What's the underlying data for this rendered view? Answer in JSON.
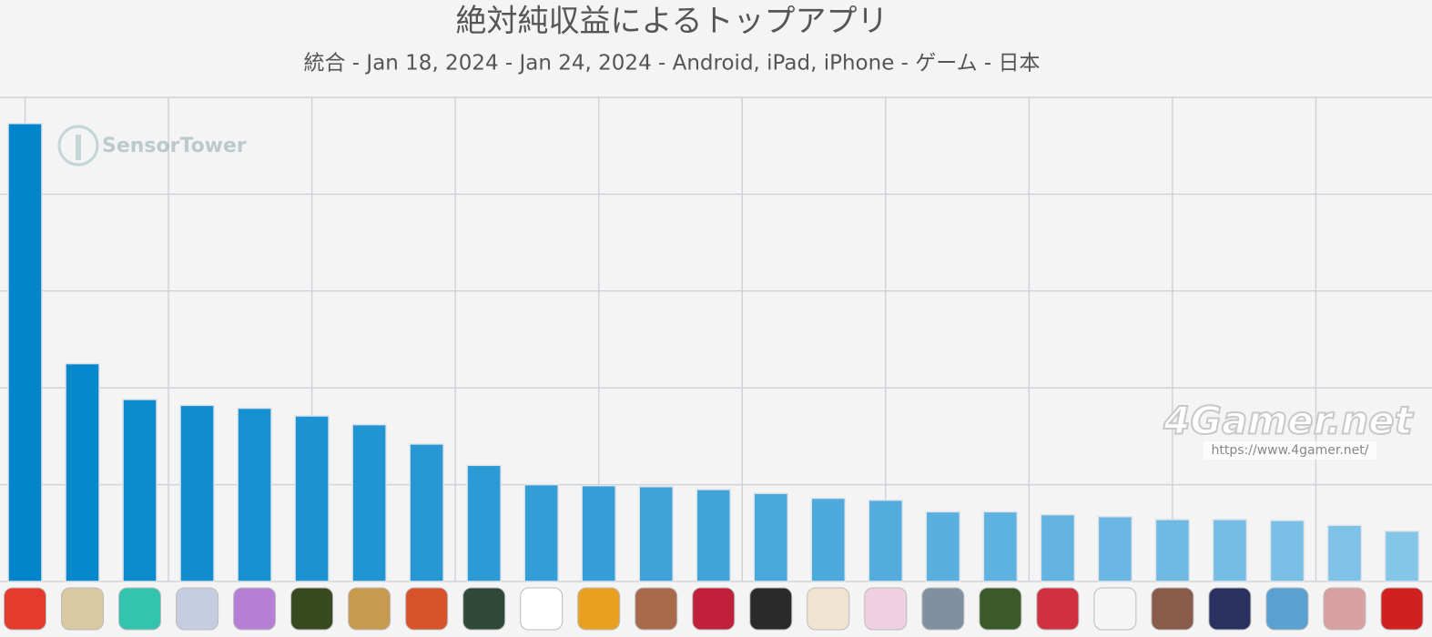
{
  "chart_data": {
    "type": "bar",
    "title": "絶対純収益によるトップアプリ",
    "subtitle": "統合 - Jan 18, 2024 - Jan 24, 2024 - Android, iPad, iPhone - ゲーム - 日本",
    "watermarks": [
      "SensorTower",
      "4Gamer.net",
      "https://www.4gamer.net/"
    ],
    "categories": [
      null,
      null,
      null,
      null,
      null,
      null,
      null,
      null,
      null,
      null,
      null,
      null,
      null,
      null,
      null,
      null,
      null,
      null,
      null,
      null,
      null,
      null,
      null,
      null,
      null
    ],
    "values": [
      4.73,
      2.25,
      1.88,
      1.82,
      1.79,
      1.71,
      1.62,
      1.42,
      1.2,
      1.0,
      0.99,
      0.98,
      0.95,
      0.91,
      0.86,
      0.84,
      0.72,
      0.72,
      0.69,
      0.67,
      0.64,
      0.64,
      0.63,
      0.58,
      0.52
    ],
    "colors": [
      "#0085cb",
      "#0688cc",
      "#0b8acd",
      "#118dcf",
      "#1690d0",
      "#1c92d1",
      "#2195d2",
      "#2797d3",
      "#2c9ad5",
      "#329dd6",
      "#379fd7",
      "#3da2d8",
      "#42a5da",
      "#48a7db",
      "#4eaadc",
      "#53acdd",
      "#59afde",
      "#5eb2e0",
      "#64b4e1",
      "#69b7e2",
      "#6fbae3",
      "#74bce4",
      "#7abfe6",
      "#7fc1e7",
      "#85c6e8"
    ],
    "ylim": [
      0,
      5
    ],
    "yticks": [
      0,
      1,
      2,
      3,
      4,
      5
    ],
    "grid": true
  }
}
